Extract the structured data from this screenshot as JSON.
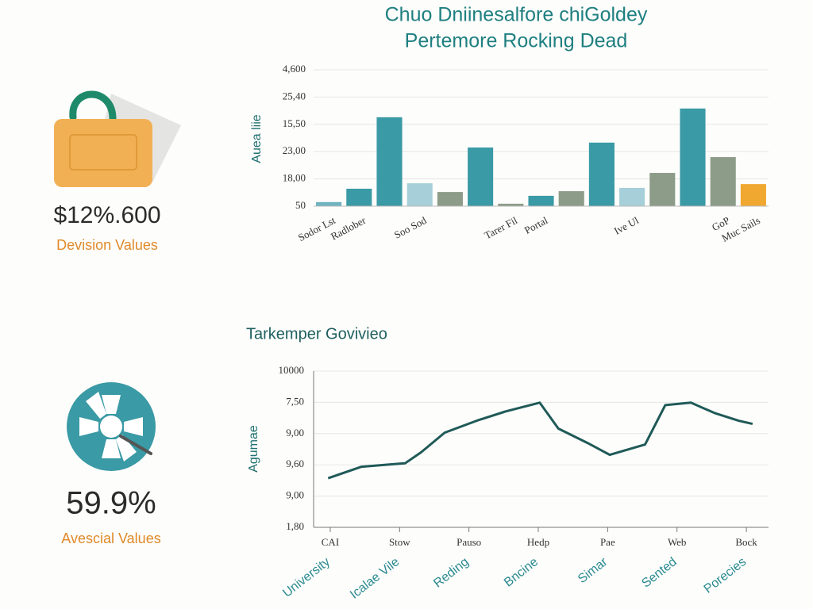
{
  "kpis": [
    {
      "value": "$12%.600",
      "label": "Devision Values"
    },
    {
      "value": "59.9%",
      "label": "Avescial Values"
    }
  ],
  "chart_data": [
    {
      "type": "bar",
      "title": "Chuo Dniinesalfore chiGoldey",
      "subtitle": "Pertemore Rocking Dead",
      "ylabel": "Auea liie",
      "categories": [
        "Sodor Lst",
        "Radlober",
        null,
        "Soo Sod",
        null,
        null,
        "Tarer Fil",
        "Portal",
        null,
        null,
        "Ive Ul",
        null,
        null,
        "GoP",
        "Muc Sails"
      ],
      "values": [
        0.15,
        0.64,
        3.26,
        0.84,
        0.52,
        2.15,
        0.09,
        0.38,
        0.55,
        2.33,
        0.67,
        1.22,
        3.58,
        1.8,
        0.81
      ],
      "colors": [
        "#6fb3c0",
        "#3a9aa5",
        "#3a9aa5",
        "#a6cfd9",
        "#8c9c88",
        "#3a9aa5",
        "#8c9c88",
        "#3a9aa5",
        "#8c9c88",
        "#3a9aa5",
        "#a6cfd9",
        "#8c9c88",
        "#3a9aa5",
        "#8c9c88",
        "#f0a830"
      ],
      "ylim": [
        0,
        5
      ],
      "yticks": [
        {
          "value": 0,
          "label": "50"
        },
        {
          "value": 1,
          "label": "18,00"
        },
        {
          "value": 2,
          "label": "23,00"
        },
        {
          "value": 3,
          "label": "15,50"
        },
        {
          "value": 4,
          "label": "25,40"
        },
        {
          "value": 5,
          "label": "4,600"
        }
      ],
      "grid": true
    },
    {
      "type": "line",
      "title": "Tarkemper Govivieo",
      "ylabel": "Agumae",
      "x": [
        -0.03,
        0.45,
        1.08,
        1.31,
        1.65,
        2.11,
        2.53,
        3.02,
        3.29,
        3.71,
        4.03,
        4.54,
        4.83,
        5.2,
        5.54,
        5.89,
        6.09
      ],
      "values": [
        1.57,
        1.94,
        2.05,
        2.4,
        3.03,
        3.41,
        3.71,
        3.99,
        3.16,
        2.7,
        2.32,
        2.65,
        3.91,
        3.99,
        3.66,
        3.41,
        3.31
      ],
      "color": "#1f5a58",
      "xlim": [
        -0.24,
        6.32
      ],
      "xticks": [
        {
          "value": 0,
          "label": "CAI"
        },
        {
          "value": 1,
          "label": "Stow"
        },
        {
          "value": 2,
          "label": "Pauso"
        },
        {
          "value": 3,
          "label": "Hedp"
        },
        {
          "value": 4,
          "label": "Pae"
        },
        {
          "value": 5,
          "label": "Web"
        },
        {
          "value": 6,
          "label": "Bock"
        }
      ],
      "x_secondary_labels": [
        "University",
        "Icalae Vile",
        "Reding",
        "Bncine",
        "Simar",
        "Sented",
        "Porecies"
      ],
      "ylim": [
        0,
        5
      ],
      "yticks": [
        {
          "value": 0,
          "label": "1,80"
        },
        {
          "value": 1,
          "label": "9,00"
        },
        {
          "value": 2,
          "label": "9,60"
        },
        {
          "value": 3,
          "label": "9,00"
        },
        {
          "value": 4,
          "label": "7,50"
        },
        {
          "value": 5,
          "label": "10000"
        }
      ],
      "grid": true
    }
  ]
}
